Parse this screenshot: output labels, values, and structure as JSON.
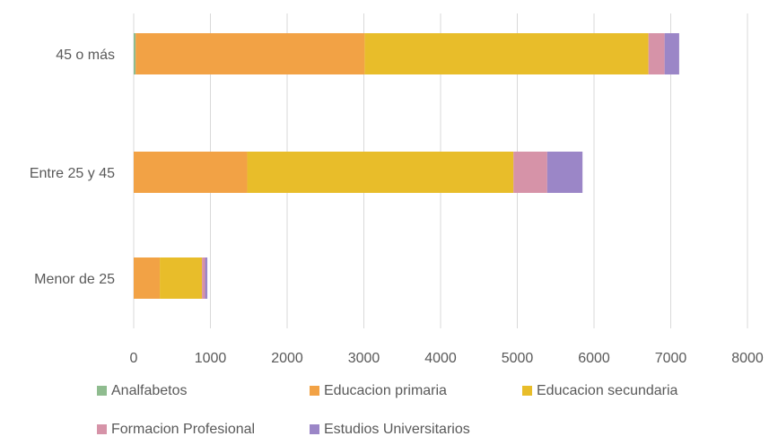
{
  "chart_data": {
    "type": "bar",
    "orientation": "horizontal",
    "stacked": true,
    "categories": [
      "45 o más",
      "Entre 25 y 45",
      "Menor de 25"
    ],
    "series": [
      {
        "name": "Analfabetos",
        "color": "#8fbc8f",
        "values": [
          25,
          0,
          0
        ]
      },
      {
        "name": "Educacion primaria",
        "color": "#f2a245",
        "values": [
          2985,
          1480,
          340
        ]
      },
      {
        "name": "Educacion secundaria",
        "color": "#e8bd2a",
        "values": [
          3700,
          3470,
          550
        ]
      },
      {
        "name": "Formacion Profesional",
        "color": "#d693a8",
        "values": [
          210,
          440,
          40
        ]
      },
      {
        "name": "Estudios Universitarios",
        "color": "#9b86c7",
        "values": [
          190,
          460,
          30
        ]
      }
    ],
    "xlim": [
      0,
      8000
    ],
    "xticks": [
      "0",
      "1000",
      "2000",
      "3000",
      "4000",
      "5000",
      "6000",
      "7000",
      "8000"
    ],
    "grid": true,
    "legend_position": "bottom",
    "title": "",
    "xlabel": "",
    "ylabel": ""
  }
}
